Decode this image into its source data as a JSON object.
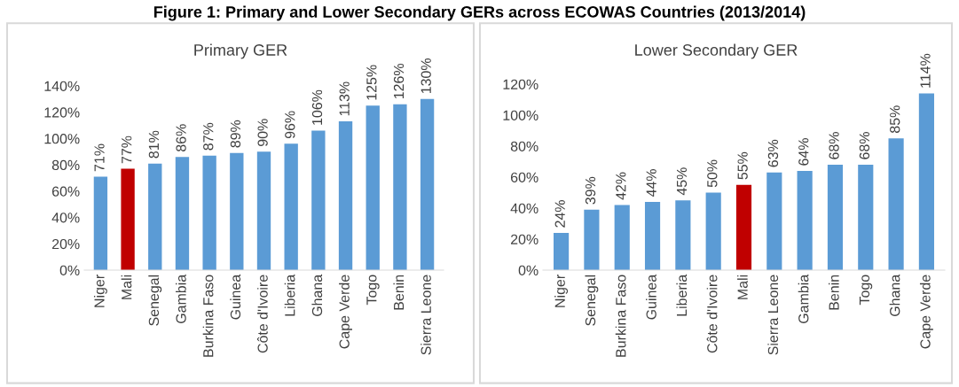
{
  "chart_data": [
    {
      "type": "bar",
      "title": "Primary GER",
      "annotations": [
        "Figure 1: Primary and Lower Secondary GERs across ECOWAS Countries (2013/2014)"
      ],
      "categories": [
        "Niger",
        "Mali",
        "Senegal",
        "Gambia",
        "Burkina Faso",
        "Guinea",
        "Côte d'Ivoire",
        "Liberia",
        "Ghana",
        "Cape Verde",
        "Togo",
        "Benin",
        "Sierra Leone"
      ],
      "values": [
        71,
        77,
        81,
        86,
        87,
        89,
        90,
        96,
        106,
        113,
        125,
        126,
        130
      ],
      "value_labels": [
        "71%",
        "77%",
        "81%",
        "86%",
        "87%",
        "89%",
        "90%",
        "96%",
        "106%",
        "113%",
        "125%",
        "126%",
        "130%"
      ],
      "colors": [
        "#5b9bd5",
        "#c00000",
        "#5b9bd5",
        "#5b9bd5",
        "#5b9bd5",
        "#5b9bd5",
        "#5b9bd5",
        "#5b9bd5",
        "#5b9bd5",
        "#5b9bd5",
        "#5b9bd5",
        "#5b9bd5",
        "#5b9bd5"
      ],
      "ylim": [
        0,
        140
      ],
      "yticks": [
        {
          "value": 0,
          "label": "0%"
        },
        {
          "value": 20,
          "label": "20%"
        },
        {
          "value": 40,
          "label": "40%"
        },
        {
          "value": 60,
          "label": "60%"
        },
        {
          "value": 80,
          "label": "80%"
        },
        {
          "value": 100,
          "label": "100%"
        },
        {
          "value": 120,
          "label": "120%"
        },
        {
          "value": 140,
          "label": "140%"
        }
      ],
      "grid": false,
      "legend": false
    },
    {
      "type": "bar",
      "title": "Lower Secondary GER",
      "categories": [
        "Niger",
        "Senegal",
        "Burkina Faso",
        "Guinea",
        "Liberia",
        "Côte d'Ivoire",
        "Mali",
        "Sierra Leone",
        "Gambia",
        "Benin",
        "Togo",
        "Ghana",
        "Cape Verde"
      ],
      "values": [
        24,
        39,
        42,
        44,
        45,
        50,
        55,
        63,
        64,
        68,
        68,
        85,
        114
      ],
      "value_labels": [
        "24%",
        "39%",
        "42%",
        "44%",
        "45%",
        "50%",
        "55%",
        "63%",
        "64%",
        "68%",
        "68%",
        "85%",
        "114%"
      ],
      "colors": [
        "#5b9bd5",
        "#5b9bd5",
        "#5b9bd5",
        "#5b9bd5",
        "#5b9bd5",
        "#5b9bd5",
        "#c00000",
        "#5b9bd5",
        "#5b9bd5",
        "#5b9bd5",
        "#5b9bd5",
        "#5b9bd5",
        "#5b9bd5"
      ],
      "ylim": [
        0,
        120
      ],
      "yticks": [
        {
          "value": 0,
          "label": "0%"
        },
        {
          "value": 20,
          "label": "20%"
        },
        {
          "value": 40,
          "label": "40%"
        },
        {
          "value": 60,
          "label": "60%"
        },
        {
          "value": 80,
          "label": "80%"
        },
        {
          "value": 100,
          "label": "100%"
        },
        {
          "value": 120,
          "label": "120%"
        }
      ],
      "grid": false,
      "legend": false
    }
  ]
}
